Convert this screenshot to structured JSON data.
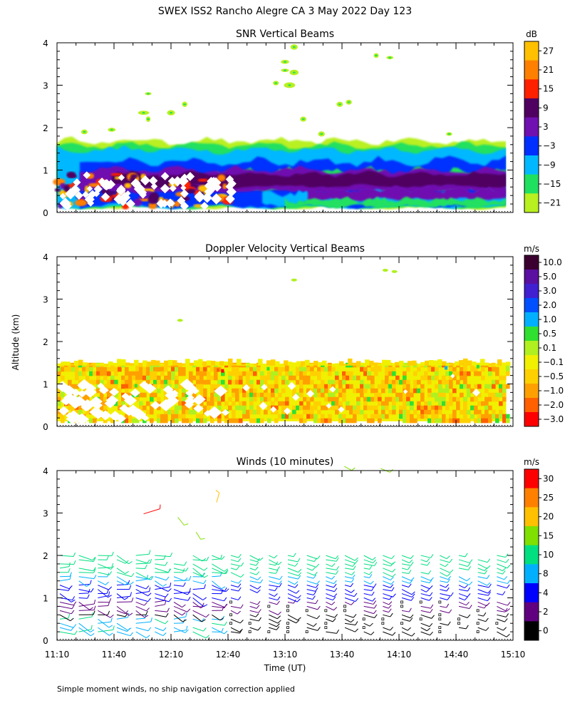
{
  "figure": {
    "title": "SWEX ISS2 Rancho Alegre CA   3 May 2022 Day 123",
    "ylabel": "Altitude (km)",
    "xlabel": "Time (UT)",
    "footnote": "Simple moment winds, no ship navigation correction applied"
  },
  "chart_data": [
    {
      "type": "heatmap",
      "title": "SNR Vertical Beams",
      "units": "dB",
      "x_ticks": [
        "11:10",
        "11:40",
        "12:10",
        "12:40",
        "13:10",
        "13:40",
        "14:10",
        "14:40",
        "15:10"
      ],
      "x_range": [
        "11:10",
        "15:10"
      ],
      "y_ticks": [
        0,
        1,
        2,
        3,
        4
      ],
      "ylim": [
        0,
        4
      ],
      "colorbar_labels": [
        "27",
        "21",
        "15",
        "9",
        "3",
        "−3",
        "−9",
        "−15",
        "−21"
      ],
      "colors": [
        "#ffc000",
        "#ff8000",
        "#ff2000",
        "#500060",
        "#7010b0",
        "#0030ff",
        "#00b8ff",
        "#20e060",
        "#b8f020"
      ]
    },
    {
      "type": "heatmap",
      "title": "Doppler Velocity Vertical Beams",
      "units": "m/s",
      "x_ticks": [
        "11:10",
        "11:40",
        "12:10",
        "12:40",
        "13:10",
        "13:40",
        "14:10",
        "14:40",
        "15:10"
      ],
      "y_ticks": [
        0,
        1,
        2,
        3,
        4
      ],
      "ylim": [
        0,
        4
      ],
      "colorbar_labels": [
        "10.0",
        "5.0",
        "3.0",
        "2.0",
        "1.0",
        "0.5",
        "0.1",
        "−0.1",
        "−0.5",
        "−1.0",
        "−2.0",
        "−3.0"
      ],
      "colors": [
        "#3a0030",
        "#5a10a0",
        "#4020d0",
        "#0050ff",
        "#00b0ff",
        "#30e030",
        "#b0f020",
        "#f0f000",
        "#ffd000",
        "#ffa000",
        "#ff6000",
        "#ff0000"
      ]
    },
    {
      "type": "barbs",
      "title": "Winds (10 minutes)",
      "units": "m/s",
      "x_ticks": [
        "11:10",
        "11:40",
        "12:10",
        "12:40",
        "13:10",
        "13:40",
        "14:10",
        "14:40",
        "15:10"
      ],
      "y_ticks": [
        0,
        1,
        2,
        3,
        4
      ],
      "ylim": [
        0,
        4
      ],
      "colorbar_labels": [
        "30",
        "25",
        "20",
        "15",
        "10",
        "8",
        "4",
        "2",
        "0"
      ],
      "colors": [
        "#ff0000",
        "#ff8000",
        "#ffc000",
        "#80e000",
        "#00e080",
        "#00b0ff",
        "#0000ff",
        "#600080",
        "#000000"
      ]
    }
  ]
}
